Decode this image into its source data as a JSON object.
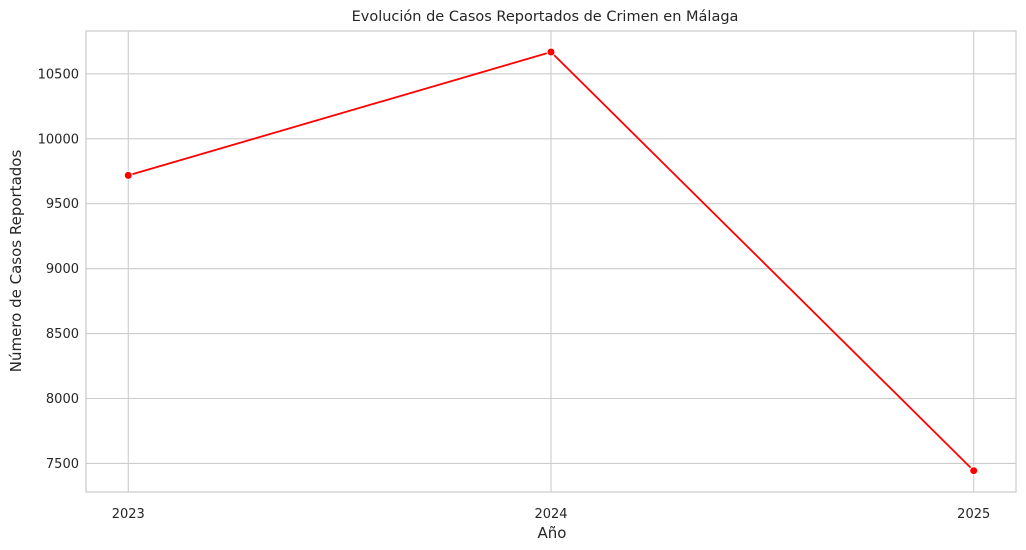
{
  "chart_data": {
    "type": "line",
    "title": "Evolución de Casos Reportados de Crimen en Málaga",
    "xlabel": "Año",
    "ylabel": "Número de Casos Reportados",
    "x": [
      2023,
      2024,
      2025
    ],
    "x_tick_labels": [
      "2023",
      "2024",
      "2025"
    ],
    "series": [
      {
        "values": [
          9718,
          10668,
          7444
        ],
        "color": "#ff0000",
        "marker": "circle"
      }
    ],
    "ylim": [
      7280,
      10830
    ],
    "y_ticks": [
      7500,
      8000,
      8500,
      9000,
      9500,
      10000,
      10500
    ],
    "y_tick_labels": [
      "7500",
      "8000",
      "8500",
      "9000",
      "9500",
      "10000",
      "10500"
    ],
    "grid": true,
    "legend": "none",
    "colors": {
      "grid": "#cccccc",
      "frame": "#cccccc",
      "text": "#262626"
    }
  }
}
